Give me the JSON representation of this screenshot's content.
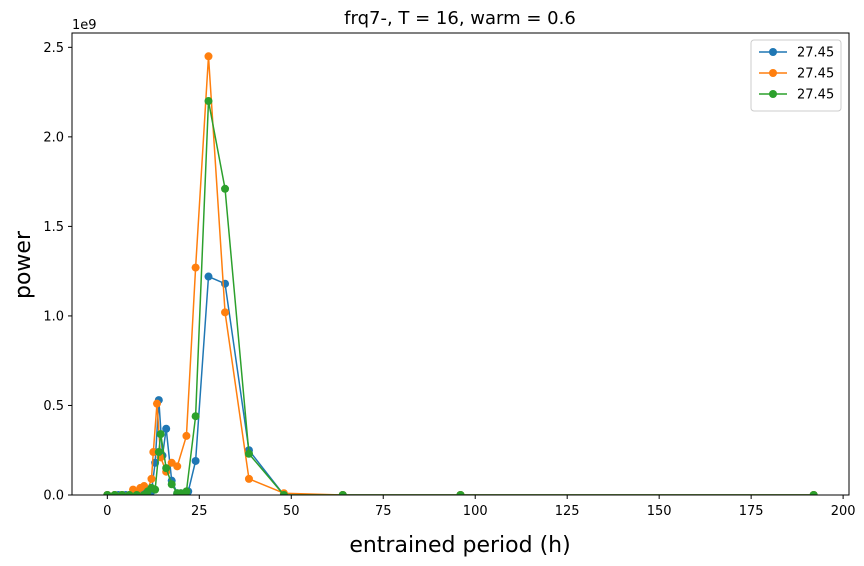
{
  "chart_data": {
    "type": "line",
    "title": "frq7-, T = 16, warm = 0.6",
    "xlabel": "entrained period (h)",
    "ylabel": "power",
    "y_offset_text": "1e9",
    "y_multiplier": 1000000000,
    "xlim": [
      -9.6,
      201.6
    ],
    "ylim": [
      0,
      2.58
    ],
    "xticks": [
      0,
      25,
      50,
      75,
      100,
      125,
      150,
      175,
      200
    ],
    "yticks": [
      0.0,
      0.5,
      1.0,
      1.5,
      2.0,
      2.5
    ],
    "xtick_labels": [
      "0",
      "25",
      "50",
      "75",
      "100",
      "125",
      "150",
      "175",
      "200"
    ],
    "ytick_labels": [
      "0.0",
      "0.5",
      "1.0",
      "1.5",
      "2.0",
      "2.5"
    ],
    "grid": false,
    "legend_position": "top-right",
    "series": [
      {
        "name": "27.45",
        "color": "#1f77b4",
        "x": [
          0,
          2,
          3,
          4,
          5,
          6,
          7,
          8,
          9,
          10,
          11,
          12,
          13,
          14,
          15,
          16,
          17.5,
          19,
          20,
          22,
          24,
          27.5,
          32,
          38.5,
          48,
          64,
          96,
          192
        ],
        "y": [
          0.0,
          0.0,
          0.0,
          0.0,
          0.0,
          0.0,
          0.0,
          0.0,
          0.0,
          0.01,
          0.02,
          0.02,
          0.18,
          0.53,
          0.22,
          0.37,
          0.08,
          0.01,
          0.01,
          0.02,
          0.19,
          1.22,
          1.18,
          0.25,
          0.0,
          0.0,
          0.0,
          0.0
        ]
      },
      {
        "name": "27.45",
        "color": "#ff7f0e",
        "x": [
          0,
          2,
          4,
          6,
          7,
          8,
          9,
          10,
          11,
          12,
          12.5,
          13.5,
          14.5,
          16,
          17.5,
          19,
          21.5,
          24,
          27.5,
          32,
          38.5,
          48,
          64,
          96,
          192
        ],
        "y": [
          0.0,
          0.0,
          0.0,
          0.0,
          0.03,
          0.01,
          0.04,
          0.05,
          0.03,
          0.09,
          0.24,
          0.51,
          0.21,
          0.13,
          0.18,
          0.16,
          0.33,
          1.27,
          2.45,
          1.02,
          0.09,
          0.01,
          0.0,
          0.0,
          0.0
        ]
      },
      {
        "name": "27.45",
        "color": "#2ca02c",
        "x": [
          0,
          2,
          4,
          6,
          8,
          10,
          11,
          12,
          13,
          14,
          14.5,
          16,
          17.5,
          19,
          20,
          21.5,
          24,
          27.5,
          32,
          38.5,
          48,
          64,
          96,
          192
        ],
        "y": [
          0.0,
          0.0,
          0.0,
          0.0,
          0.0,
          0.0,
          0.02,
          0.04,
          0.03,
          0.24,
          0.34,
          0.15,
          0.06,
          0.01,
          0.01,
          0.02,
          0.44,
          2.2,
          1.71,
          0.23,
          0.0,
          0.0,
          0.0,
          0.0
        ]
      }
    ]
  }
}
